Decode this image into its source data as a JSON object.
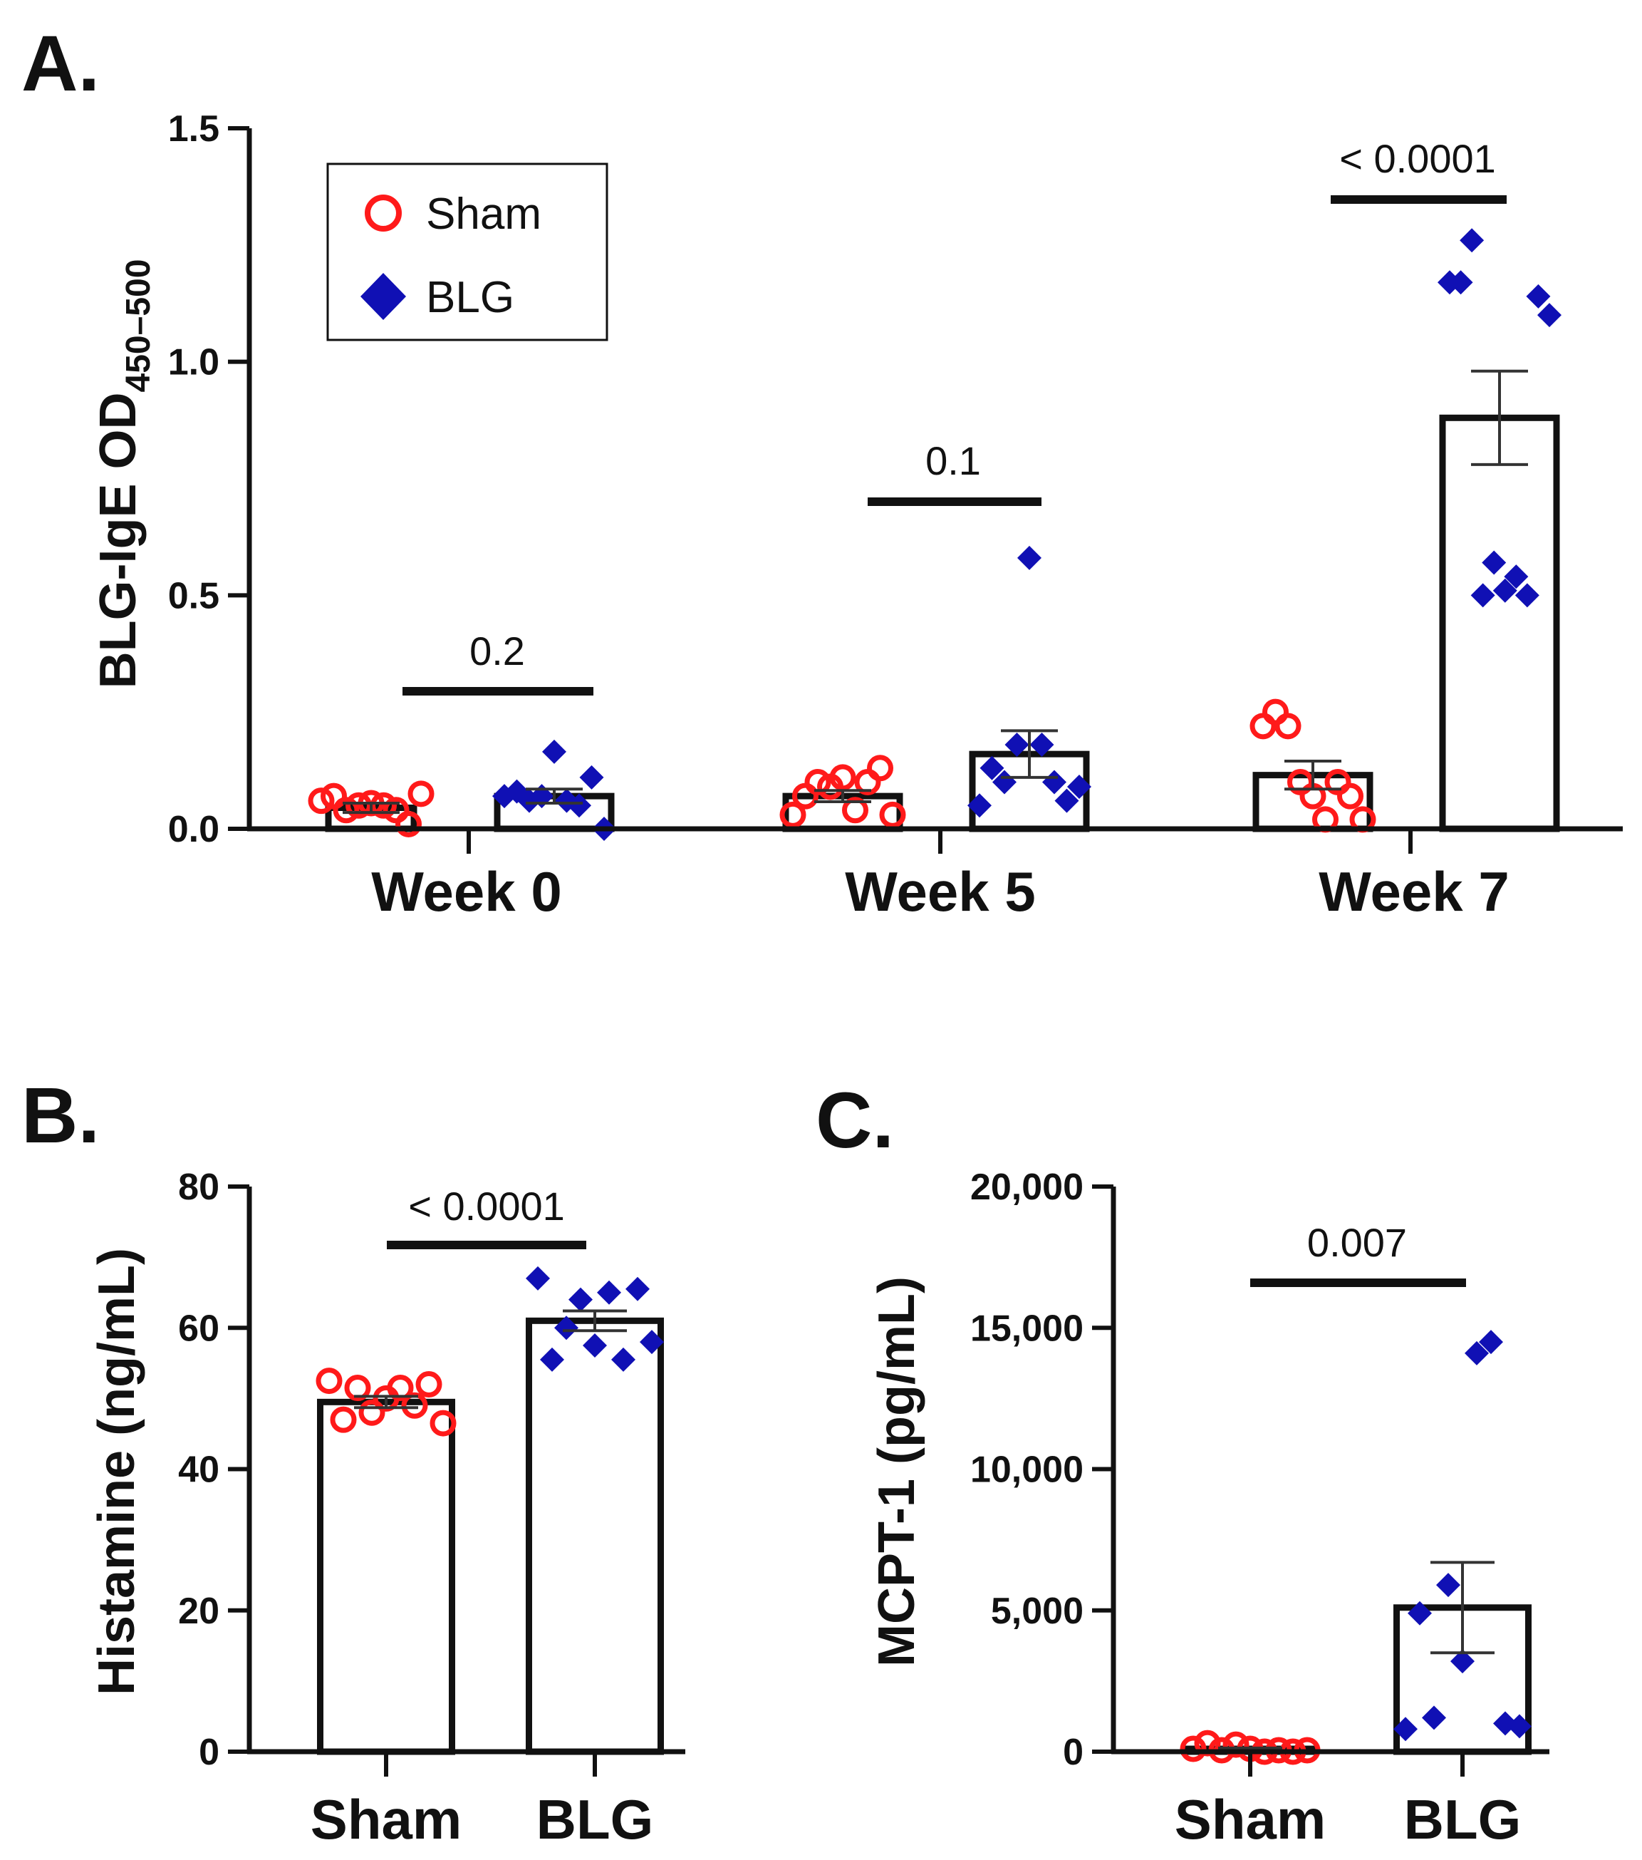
{
  "colors": {
    "sham": "#ff1a1a",
    "blg": "#1010b4",
    "ink": "#111111"
  },
  "chart_data": [
    {
      "panel": "A.",
      "type": "bar",
      "ylabel_main": "BLG-IgE OD",
      "ylabel_sub": "450–500",
      "ylim": [
        0,
        1.5
      ],
      "yticks": [
        0,
        0.5,
        1.0,
        1.5
      ],
      "ytick_labels": [
        "0.0",
        "0.5",
        "1.0",
        "1.5"
      ],
      "groups": [
        "Week 0",
        "Week 5",
        "Week 7"
      ],
      "legend": {
        "position": "top-left",
        "entries": [
          "Sham",
          "BLG"
        ]
      },
      "series": [
        {
          "name": "Sham",
          "marker": "open-circle",
          "means": [
            0.045,
            0.07,
            0.115
          ],
          "sem": [
            0.01,
            0.012,
            0.03
          ],
          "points": [
            [
              0.06,
              0.07,
              0.04,
              0.05,
              0.055,
              0.05,
              0.04,
              0.01,
              0.075
            ],
            [
              0.03,
              0.07,
              0.1,
              0.09,
              0.11,
              0.04,
              0.1,
              0.13,
              0.03
            ],
            [
              0.22,
              0.25,
              0.22,
              0.1,
              0.07,
              0.02,
              0.1,
              0.07,
              0.02
            ]
          ]
        },
        {
          "name": "BLG",
          "marker": "filled-diamond",
          "means": [
            0.07,
            0.16,
            0.88
          ],
          "sem": [
            0.015,
            0.05,
            0.1
          ],
          "points": [
            [
              0.07,
              0.08,
              0.06,
              0.07,
              0.165,
              0.06,
              0.05,
              0.11,
              0.0
            ],
            [
              0.05,
              0.13,
              0.1,
              0.18,
              0.58,
              0.18,
              0.1,
              0.06,
              0.09
            ],
            [
              1.17,
              1.17,
              1.26,
              0.5,
              0.57,
              0.51,
              0.54,
              0.5,
              1.14,
              1.1
            ]
          ]
        }
      ],
      "comparisons": [
        "0.2",
        "0.1",
        "< 0.0001"
      ]
    },
    {
      "panel": "B.",
      "type": "bar",
      "ylabel": "Histamine (ng/mL)",
      "ylim": [
        0,
        80
      ],
      "yticks": [
        0,
        20,
        40,
        60,
        80
      ],
      "ytick_labels": [
        "0",
        "20",
        "40",
        "60",
        "80"
      ],
      "categories": [
        "Sham",
        "BLG"
      ],
      "means": [
        49.5,
        61
      ],
      "sem": [
        0.8,
        1.4
      ],
      "points": [
        [
          52.5,
          47,
          51.5,
          48,
          50,
          51.5,
          49,
          52,
          46.5
        ],
        [
          67,
          55.5,
          60,
          64,
          57.5,
          65,
          55.5,
          65.5,
          58
        ]
      ],
      "comparison": "< 0.0001"
    },
    {
      "panel": "C.",
      "type": "bar",
      "ylabel": "MCPT-1 (pg/mL)",
      "ylim": [
        0,
        20000
      ],
      "yticks": [
        0,
        5000,
        10000,
        15000,
        20000
      ],
      "ytick_labels": [
        "0",
        "5,000",
        "10,000",
        "15,000",
        "20,000"
      ],
      "categories": [
        "Sham",
        "BLG"
      ],
      "means": [
        100,
        5100
      ],
      "sem": [
        30,
        1600
      ],
      "points": [
        [
          100,
          300,
          50,
          250,
          100,
          0,
          50,
          0,
          50
        ],
        [
          800,
          4900,
          1200,
          5900,
          3200,
          14100,
          14500,
          1000,
          900
        ]
      ],
      "comparison": "0.007"
    }
  ]
}
